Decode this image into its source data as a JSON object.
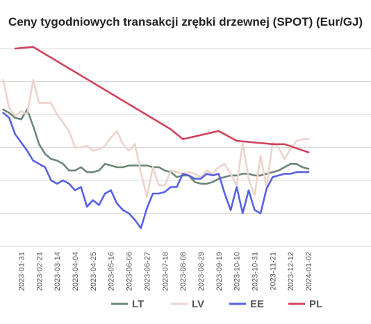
{
  "chart_data": {
    "type": "line",
    "title": "Ceny tygodniowych transakcji zrębki drzewnej (SPOT) (Eur/GJ)",
    "xlabel": "",
    "ylabel": "",
    "x_tick_labels": [
      "2023-01-31",
      "2023-02-21",
      "2023-03-14",
      "2023-04-04",
      "2023-04-25",
      "2023-05-16",
      "2023-06-06",
      "2023-06-27",
      "2023-07-18",
      "2023-08-08",
      "2023-08-29",
      "2023-09-19",
      "2023-10-10",
      "2023-10-31",
      "2023-11-21",
      "2023-12-12",
      "2024-01-02"
    ],
    "y_tick_labels": [],
    "ylim": [
      4,
      16
    ],
    "grid": true,
    "legend_position": "bottom",
    "series": [
      {
        "name": "LT",
        "color": "#6b8576",
        "points": [
          [
            "2023-01-10",
            12.3
          ],
          [
            "2023-01-17",
            12.1
          ],
          [
            "2023-01-24",
            11.8
          ],
          [
            "2023-01-31",
            11.7
          ],
          [
            "2023-02-07",
            12.3
          ],
          [
            "2023-02-14",
            11.3
          ],
          [
            "2023-02-21",
            10.2
          ],
          [
            "2023-02-28",
            9.6
          ],
          [
            "2023-03-07",
            9.3
          ],
          [
            "2023-03-14",
            9.2
          ],
          [
            "2023-03-21",
            9.0
          ],
          [
            "2023-03-28",
            8.6
          ],
          [
            "2023-04-04",
            8.6
          ],
          [
            "2023-04-11",
            8.8
          ],
          [
            "2023-04-18",
            8.5
          ],
          [
            "2023-04-25",
            8.5
          ],
          [
            "2023-05-02",
            8.6
          ],
          [
            "2023-05-09",
            9.0
          ],
          [
            "2023-05-16",
            8.9
          ],
          [
            "2023-05-23",
            8.8
          ],
          [
            "2023-05-30",
            8.8
          ],
          [
            "2023-06-06",
            8.9
          ],
          [
            "2023-06-13",
            8.9
          ],
          [
            "2023-06-20",
            8.9
          ],
          [
            "2023-06-27",
            8.9
          ],
          [
            "2023-07-04",
            8.8
          ],
          [
            "2023-07-11",
            8.8
          ],
          [
            "2023-07-18",
            8.6
          ],
          [
            "2023-07-25",
            8.5
          ],
          [
            "2023-08-01",
            8.2
          ],
          [
            "2023-08-08",
            8.3
          ],
          [
            "2023-08-15",
            8.3
          ],
          [
            "2023-08-22",
            7.9
          ],
          [
            "2023-08-29",
            7.8
          ],
          [
            "2023-09-05",
            7.8
          ],
          [
            "2023-09-12",
            7.9
          ],
          [
            "2023-09-19",
            8.1
          ],
          [
            "2023-09-26",
            8.2
          ],
          [
            "2023-10-03",
            8.3
          ],
          [
            "2023-10-10",
            8.3
          ],
          [
            "2023-10-17",
            8.4
          ],
          [
            "2023-10-24",
            8.4
          ],
          [
            "2023-10-31",
            8.3
          ],
          [
            "2023-11-07",
            8.3
          ],
          [
            "2023-11-14",
            8.4
          ],
          [
            "2023-11-21",
            8.5
          ],
          [
            "2023-11-28",
            8.6
          ],
          [
            "2023-12-05",
            8.8
          ],
          [
            "2023-12-12",
            9.0
          ],
          [
            "2023-12-19",
            9.0
          ],
          [
            "2023-12-26",
            8.8
          ],
          [
            "2024-01-02",
            8.7
          ]
        ]
      },
      {
        "name": "LV",
        "color": "#ecd3cb",
        "points": [
          [
            "2023-01-10",
            14.1
          ],
          [
            "2023-01-17",
            12.4
          ],
          [
            "2023-01-24",
            11.9
          ],
          [
            "2023-01-31",
            12.2
          ],
          [
            "2023-02-07",
            12.0
          ],
          [
            "2023-02-14",
            14.1
          ],
          [
            "2023-02-21",
            12.7
          ],
          [
            "2023-02-28",
            12.7
          ],
          [
            "2023-03-07",
            12.7
          ],
          [
            "2023-03-14",
            12.0
          ],
          [
            "2023-03-21",
            11.5
          ],
          [
            "2023-03-28",
            11.0
          ],
          [
            "2023-04-04",
            10.0
          ],
          [
            "2023-04-11",
            10.0
          ],
          [
            "2023-04-18",
            10.1
          ],
          [
            "2023-04-25",
            9.8
          ],
          [
            "2023-05-02",
            9.9
          ],
          [
            "2023-05-09",
            10.1
          ],
          [
            "2023-05-16",
            10.6
          ],
          [
            "2023-05-23",
            11.0
          ],
          [
            "2023-05-30",
            10.2
          ],
          [
            "2023-06-06",
            9.8
          ],
          [
            "2023-06-13",
            10.2
          ],
          [
            "2023-06-20",
            8.5
          ],
          [
            "2023-06-27",
            7.0
          ],
          [
            "2023-07-04",
            8.8
          ],
          [
            "2023-07-11",
            7.7
          ],
          [
            "2023-07-18",
            7.7
          ],
          [
            "2023-07-25",
            8.6
          ],
          [
            "2023-08-01",
            8.5
          ],
          [
            "2023-08-08",
            8.4
          ],
          [
            "2023-08-15",
            8.5
          ],
          [
            "2023-08-22",
            8.4
          ],
          [
            "2023-08-29",
            8.2
          ],
          [
            "2023-09-05",
            8.6
          ],
          [
            "2023-09-12",
            8.4
          ],
          [
            "2023-09-19",
            8.8
          ],
          [
            "2023-09-26",
            9.0
          ],
          [
            "2023-10-03",
            8.4
          ],
          [
            "2023-10-10",
            7.7
          ],
          [
            "2023-10-17",
            10.3
          ],
          [
            "2023-10-24",
            8.1
          ],
          [
            "2023-10-31",
            7.1
          ],
          [
            "2023-11-07",
            9.5
          ],
          [
            "2023-11-14",
            7.6
          ],
          [
            "2023-11-21",
            10.3
          ],
          [
            "2023-11-28",
            10.0
          ],
          [
            "2023-12-05",
            9.3
          ],
          [
            "2023-12-12",
            9.9
          ],
          [
            "2023-12-19",
            10.4
          ],
          [
            "2023-12-26",
            10.5
          ],
          [
            "2024-01-02",
            10.5
          ]
        ]
      },
      {
        "name": "EE",
        "color": "#5560e6",
        "points": [
          [
            "2023-01-10",
            12.1
          ],
          [
            "2023-01-17",
            11.8
          ],
          [
            "2023-01-24",
            10.8
          ],
          [
            "2023-01-31",
            10.3
          ],
          [
            "2023-02-07",
            9.8
          ],
          [
            "2023-02-14",
            9.2
          ],
          [
            "2023-02-21",
            9.0
          ],
          [
            "2023-02-28",
            8.8
          ],
          [
            "2023-03-07",
            8.0
          ],
          [
            "2023-03-14",
            7.8
          ],
          [
            "2023-03-21",
            8.0
          ],
          [
            "2023-03-28",
            7.8
          ],
          [
            "2023-04-04",
            7.4
          ],
          [
            "2023-04-11",
            7.6
          ],
          [
            "2023-04-18",
            6.4
          ],
          [
            "2023-04-25",
            6.8
          ],
          [
            "2023-05-02",
            6.5
          ],
          [
            "2023-05-09",
            7.2
          ],
          [
            "2023-05-16",
            7.4
          ],
          [
            "2023-05-23",
            6.6
          ],
          [
            "2023-05-30",
            6.2
          ],
          [
            "2023-06-06",
            6.0
          ],
          [
            "2023-06-13",
            5.6
          ],
          [
            "2023-06-20",
            5.1
          ],
          [
            "2023-06-27",
            6.3
          ],
          [
            "2023-07-04",
            7.2
          ],
          [
            "2023-07-11",
            7.2
          ],
          [
            "2023-07-18",
            7.3
          ],
          [
            "2023-07-25",
            7.6
          ],
          [
            "2023-08-01",
            7.6
          ],
          [
            "2023-08-08",
            8.4
          ],
          [
            "2023-08-15",
            8.3
          ],
          [
            "2023-08-22",
            8.1
          ],
          [
            "2023-08-29",
            8.1
          ],
          [
            "2023-09-05",
            8.4
          ],
          [
            "2023-09-12",
            8.3
          ],
          [
            "2023-09-19",
            8.4
          ],
          [
            "2023-09-26",
            7.2
          ],
          [
            "2023-10-03",
            6.2
          ],
          [
            "2023-10-10",
            7.6
          ],
          [
            "2023-10-17",
            6.0
          ],
          [
            "2023-10-24",
            7.4
          ],
          [
            "2023-10-31",
            6.2
          ],
          [
            "2023-11-07",
            6.0
          ],
          [
            "2023-11-14",
            7.5
          ],
          [
            "2023-11-21",
            8.2
          ],
          [
            "2023-11-28",
            8.3
          ],
          [
            "2023-12-05",
            8.4
          ],
          [
            "2023-12-12",
            8.4
          ],
          [
            "2023-12-19",
            8.5
          ],
          [
            "2023-12-26",
            8.5
          ],
          [
            "2024-01-02",
            8.5
          ]
        ]
      },
      {
        "name": "PL",
        "color": "#d0435a",
        "points": [
          [
            "2023-01-24",
            16.0
          ],
          [
            "2023-02-14",
            16.1
          ],
          [
            "2023-07-25",
            11.1
          ],
          [
            "2023-08-08",
            10.5
          ],
          [
            "2023-09-19",
            11.0
          ],
          [
            "2023-10-10",
            10.4
          ],
          [
            "2023-11-21",
            10.2
          ],
          [
            "2023-12-05",
            10.2
          ],
          [
            "2024-01-02",
            9.7
          ]
        ]
      }
    ]
  }
}
